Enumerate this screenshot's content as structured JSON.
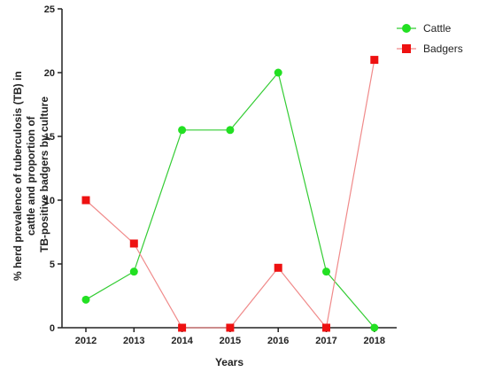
{
  "chart_data": {
    "type": "line",
    "x": [
      "2012",
      "2013",
      "2014",
      "2015",
      "2016",
      "2017",
      "2018"
    ],
    "xlabel": "Years",
    "ylabel_lines": [
      "% herd prevalence of tuberculosis (TB) in",
      "cattle and proportion of",
      "TB-positive badgers by culture"
    ],
    "ylim": [
      0,
      25
    ],
    "yticks": [
      "0",
      "5",
      "10",
      "15",
      "20",
      "25"
    ],
    "grid": false,
    "legend_position": "top-right",
    "series": [
      {
        "name": "Cattle",
        "color": "#22e022",
        "line_color": "#33cc33",
        "marker": "circle",
        "values": [
          2.2,
          4.4,
          15.5,
          15.5,
          20.0,
          4.4,
          0.0
        ]
      },
      {
        "name": "Badgers",
        "color": "#ee1111",
        "line_color": "#f08a8a",
        "marker": "square",
        "values": [
          10.0,
          6.6,
          0.0,
          0.0,
          4.7,
          0.0,
          21.0
        ]
      }
    ]
  }
}
